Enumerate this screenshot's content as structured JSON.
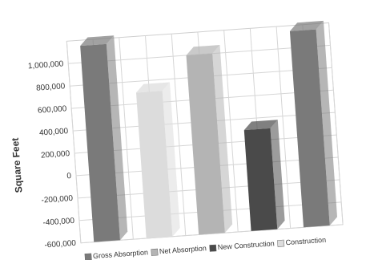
{
  "chart_data": {
    "type": "bar",
    "y_label": "Square Feet",
    "categories": [
      null,
      null,
      null,
      null,
      null
    ],
    "series": [
      {
        "name": "Gross Absorption",
        "color": "#7a7a7a",
        "values": [
          1150000,
          null,
          null,
          null,
          1150000
        ]
      },
      {
        "name": "Net Absorption",
        "color": "#b4b4b4",
        "values": [
          null,
          null,
          1000000,
          null,
          null
        ]
      },
      {
        "name": "New Construction",
        "color": "#4a4a4a",
        "values": [
          null,
          null,
          null,
          300000,
          null
        ]
      },
      {
        "name": "Construction",
        "color": "#dcdcdc",
        "values": [
          null,
          700000,
          null,
          null,
          null
        ]
      }
    ],
    "ylim": [
      -600000,
      1200000
    ],
    "yticks": [
      {
        "value": -600000,
        "label": "-600,000"
      },
      {
        "value": -400000,
        "label": "-400,000"
      },
      {
        "value": -200000,
        "label": "-200,000"
      },
      0,
      {
        "value": 200000,
        "label": "200,000"
      },
      {
        "value": 400000,
        "label": "400,000"
      },
      {
        "value": 600000,
        "label": "600,000"
      },
      {
        "value": 800000,
        "label": "800,000"
      },
      {
        "value": 1000000,
        "label": "1,000,000"
      }
    ],
    "grid": true
  }
}
